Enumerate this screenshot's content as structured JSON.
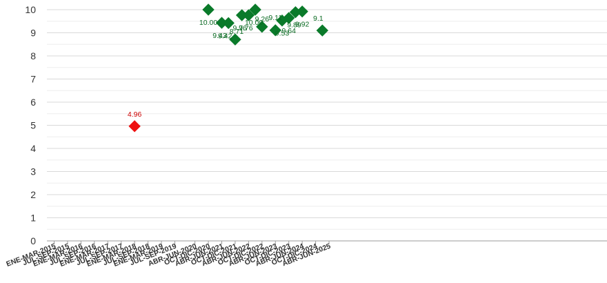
{
  "chart_data": {
    "type": "scatter",
    "title": "",
    "xlabel": "",
    "ylabel": "",
    "ylim": [
      0,
      10
    ],
    "yticks": [
      "0",
      "1",
      "2",
      "3",
      "4",
      "5",
      "6",
      "7",
      "8",
      "9",
      "10"
    ],
    "grid": true,
    "legend": "none",
    "x_labels_shown": [
      "ENE-MAR-2015",
      "JUL-SEP-2015",
      "ENE-MAR-2016",
      "JUL-SEP-2016",
      "ENE-MAR-2017",
      "JUL-SEP-2017",
      "ENE-MAR-2018",
      "JUL-SEP-2018",
      "ENE-MAR-2019",
      "JUL-SEP-2019",
      "ABR-JUN-2020",
      "OCT-DIC-2020",
      "ABR-JUN-2021",
      "OCT-DIC-2021",
      "ABR-JUN-2022",
      "OCT-DIC-2022",
      "ABR-JUN-2023",
      "OCT-DIC-2023",
      "ABR-JUN-2024",
      "OCT-DIC-2024",
      "ABR-JUN-2025"
    ],
    "colors": {
      "good": "#0a7a2a",
      "bad": "#ee1111",
      "grid": "#dddddd",
      "axis": "#999999"
    },
    "points": [
      {
        "x": "ENE-MAR-2018",
        "y": 4.96,
        "label": "4.96",
        "status": "bad"
      },
      {
        "x": "OCT-DIC-2020",
        "y": 10.0,
        "label": "10.00",
        "status": "good"
      },
      {
        "x": "ABR-JUN-2021",
        "y": 9.43,
        "label": "9.43",
        "status": "good"
      },
      {
        "x": "JUL-SEP-2021",
        "y": 9.42,
        "label": "9.42",
        "status": "good"
      },
      {
        "x": "OCT-DIC-2021",
        "y": 8.71,
        "label": "8.71",
        "status": "good"
      },
      {
        "x": "ENE-MAR-2022",
        "y": 9.76,
        "label": "9.76",
        "status": "good"
      },
      {
        "x": "ABR-JUN-2022",
        "y": 9.76,
        "label": "9.76",
        "status": "good"
      },
      {
        "x": "JUL-SEP-2022",
        "y": 10.0,
        "label": "10.00",
        "status": "good"
      },
      {
        "x": "OCT-DIC-2022",
        "y": 9.26,
        "label": "9.26",
        "status": "good"
      },
      {
        "x": "ABR-JUN-2023",
        "y": 9.11,
        "label": "9.11",
        "status": "good"
      },
      {
        "x": "JUL-SEP-2023",
        "y": 9.53,
        "label": "9.53",
        "status": "good"
      },
      {
        "x": "OCT-DIC-2023",
        "y": 9.64,
        "label": "9.64",
        "status": "good"
      },
      {
        "x": "ENE-MAR-2024",
        "y": 9.89,
        "label": "9.89",
        "status": "good"
      },
      {
        "x": "ABR-JUN-2024",
        "y": 9.92,
        "label": "9.92",
        "status": "good"
      },
      {
        "x": "ENE-MAR-2025",
        "y": 9.1,
        "label": "9.1",
        "status": "good"
      }
    ]
  }
}
